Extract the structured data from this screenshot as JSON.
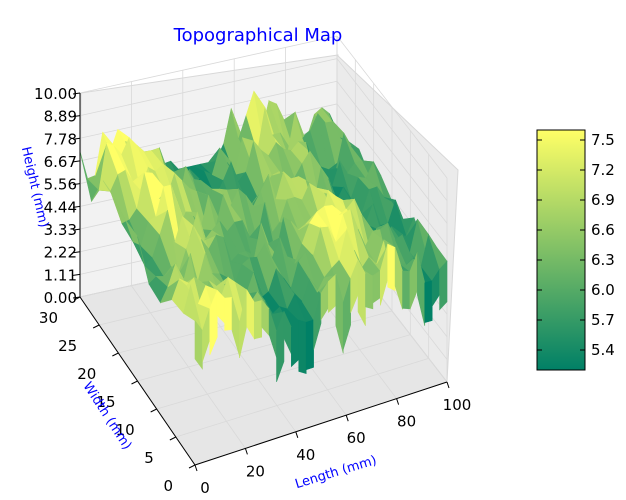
{
  "chart_data": {
    "type": "surface3d",
    "title": "Topographical Map",
    "xlabel": "Length (mm)",
    "ylabel": "Width (mm)",
    "zlabel": "Height (mm)",
    "xlim": [
      0,
      100
    ],
    "ylim": [
      0,
      30
    ],
    "zlim": [
      0,
      10
    ],
    "x_ticks": [
      "0",
      "20",
      "40",
      "60",
      "80",
      "100"
    ],
    "y_ticks": [
      "0",
      "5",
      "10",
      "15",
      "20",
      "25",
      "30"
    ],
    "z_ticks": [
      "0.00",
      "1.11",
      "2.22",
      "3.33",
      "4.44",
      "5.56",
      "6.67",
      "7.78",
      "8.89",
      "10.00"
    ],
    "colormap": "summer",
    "color_min": "#008066",
    "color_max": "#ffff66",
    "colorbar_ticks": [
      "5.4",
      "5.7",
      "6.0",
      "6.3",
      "6.6",
      "6.9",
      "7.2",
      "7.5"
    ],
    "colorbar_range": [
      5.2,
      7.6
    ],
    "height_range_estimate": [
      5.2,
      7.6
    ],
    "grid": true
  }
}
